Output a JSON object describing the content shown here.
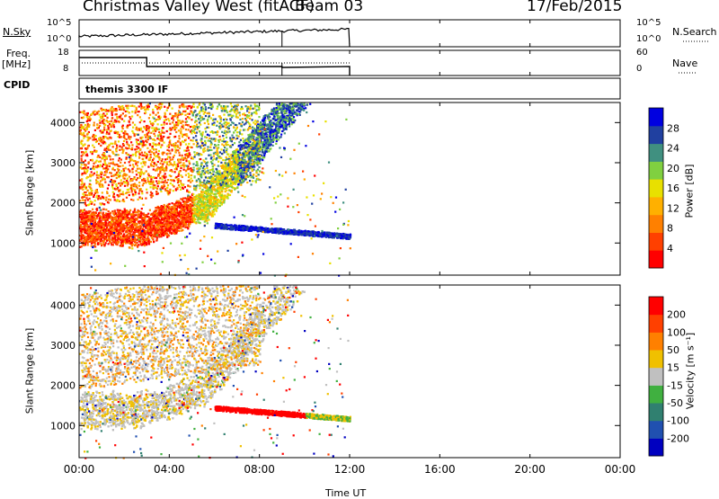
{
  "header": {
    "station": "Christmas Valley West (fitACF)",
    "beam": "Beam 03",
    "date": "17/Feb/2015"
  },
  "top_panels": {
    "nsky_label": "N.Sky",
    "nsky_ticks": [
      "10^5",
      "10^0"
    ],
    "nsearch_label": "N.Search",
    "nsearch_ticks": [
      "10^5",
      "10^0"
    ],
    "freq_label": "Freq.",
    "freq_unit": "[MHz]",
    "freq_ticks": [
      "18",
      "8"
    ],
    "nave_label": "Nave",
    "nave_ticks": [
      "60",
      "0"
    ],
    "cpid_label": "CPID",
    "cpid_value": "themis 3300 IF"
  },
  "chart_data": [
    {
      "type": "heatmap",
      "name": "power-panel",
      "ylabel": "Slant Range [km]",
      "yticks": [
        "4000",
        "3000",
        "2000",
        "1000"
      ],
      "ylim": [
        200,
        4500
      ],
      "colorbar": {
        "label": "Power [dB]",
        "ticks": [
          "28",
          "24",
          "20",
          "16",
          "12",
          "8",
          "4"
        ],
        "colors": [
          "#ff0000",
          "#ff4000",
          "#ff8000",
          "#ffb000",
          "#e8e000",
          "#80d040",
          "#409080",
          "#2040a0",
          "#0000e0"
        ]
      }
    },
    {
      "type": "heatmap",
      "name": "velocity-panel",
      "ylabel": "Slant Range [km]",
      "yticks": [
        "4000",
        "3000",
        "2000",
        "1000"
      ],
      "ylim": [
        200,
        4500
      ],
      "colorbar": {
        "label": "Velocity [m s⁻¹]",
        "ticks": [
          "200",
          "100",
          "50",
          "15",
          "-15",
          "-50",
          "-100",
          "-200"
        ],
        "colors": [
          "#0000c0",
          "#2050b0",
          "#308070",
          "#40b040",
          "#c0c0c0",
          "#f0c000",
          "#ff8000",
          "#ff4000",
          "#ff0000"
        ]
      }
    }
  ],
  "time_axis": {
    "label": "Time UT",
    "ticks": [
      "00:00",
      "04:00",
      "08:00",
      "12:00",
      "16:00",
      "20:00",
      "00:00"
    ],
    "xlim_hours": [
      0,
      24
    ],
    "data_end_hour": 12
  }
}
